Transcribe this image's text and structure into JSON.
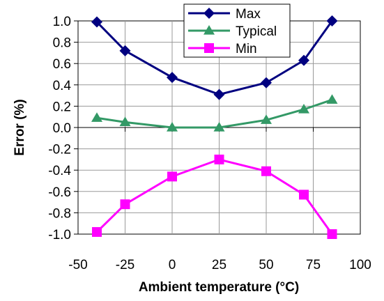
{
  "chart_data": {
    "type": "line",
    "xlabel": "Ambient temperature (°C)",
    "ylabel": "Error  (%)",
    "xlim": [
      -50,
      100
    ],
    "ylim": [
      -1.0,
      1.0
    ],
    "x_ticks": [
      -50,
      -25,
      0,
      25,
      50,
      75,
      100
    ],
    "x_tick_labels": [
      "-50",
      "-25",
      "0",
      "25",
      "50",
      "75",
      "100"
    ],
    "y_ticks": [
      1.0,
      0.8,
      0.6,
      0.4,
      0.2,
      0.0,
      -0.2,
      -0.4,
      -0.6,
      -0.8,
      -1.0
    ],
    "y_tick_labels": [
      "1.0",
      "0.8",
      "0.6",
      "0.4",
      "0.2",
      "0.0",
      "-0.2",
      "-0.4",
      "-0.6",
      "-0.8",
      "-1.0"
    ],
    "grid": true,
    "legend_position": "top-right",
    "x": [
      -40,
      -25,
      0,
      25,
      50,
      70,
      85
    ],
    "series": [
      {
        "name": "Max",
        "values": [
          0.99,
          0.72,
          0.47,
          0.31,
          0.42,
          0.63,
          1.0
        ],
        "color": "#000080",
        "marker": "diamond"
      },
      {
        "name": "Typical",
        "values": [
          0.09,
          0.05,
          0.0,
          0.0,
          0.07,
          0.17,
          0.26
        ],
        "color": "#339966",
        "marker": "triangle"
      },
      {
        "name": "Min",
        "values": [
          -0.98,
          -0.72,
          -0.46,
          -0.3,
          -0.41,
          -0.63,
          -1.0
        ],
        "color": "#ff00ff",
        "marker": "square"
      }
    ]
  }
}
